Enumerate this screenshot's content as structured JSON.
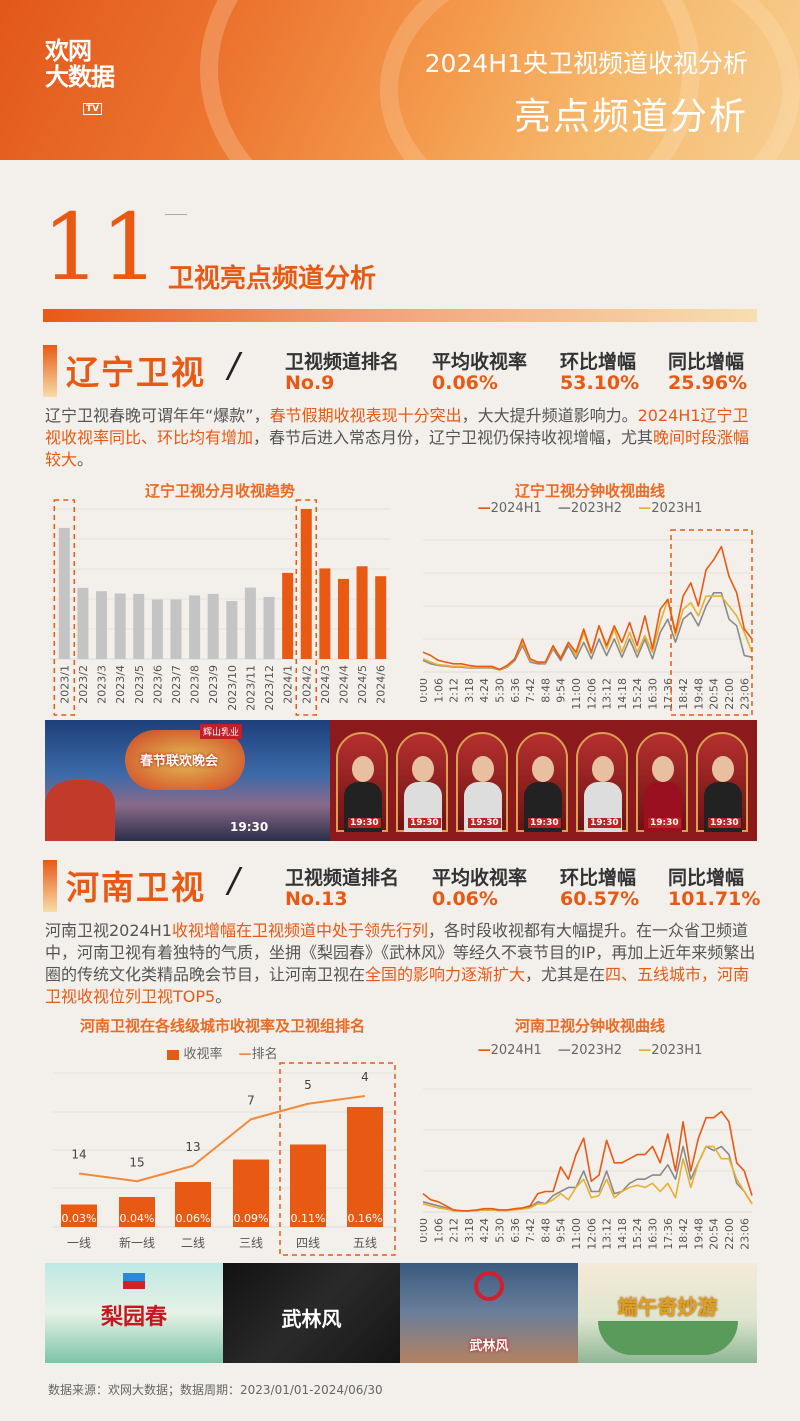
{
  "header": {
    "logo_text_1": "欢网",
    "logo_text_2": "大数据",
    "logo_badge": "TV",
    "subtitle": "2024H1央卫视频道收视分析",
    "title": "亮点频道分析"
  },
  "section": {
    "number": "11",
    "title": "卫视亮点频道分析"
  },
  "stat_labels": [
    "卫视频道排名",
    "平均收视率",
    "环比增幅",
    "同比增幅"
  ],
  "liaoning": {
    "name": "辽宁卫视",
    "slash": "/",
    "stats": [
      "No.9",
      "0.06%",
      "53.10%",
      "25.96%"
    ],
    "paragraph": [
      {
        "t": "辽宁卫视春晚可谓年年“爆款”，"
      },
      {
        "t": "春节假期收视表现十分突出",
        "hl": true
      },
      {
        "t": "，大大提升频道影响力。"
      },
      {
        "t": "2024H1辽宁卫视收视率同比、环比均有增加",
        "hl": true
      },
      {
        "t": "，春节后进入常态月份，辽宁卫视仍保持收视增幅，尤其"
      },
      {
        "t": "晚间时段涨幅较大",
        "hl": true
      },
      {
        "t": "。"
      }
    ],
    "photos": {
      "left_caption": "春节联欢晚会",
      "left_time": "19:30",
      "left_sponsor": "辉山乳业",
      "right_time": "19:30"
    }
  },
  "henan": {
    "name": "河南卫视",
    "slash": "/",
    "stats": [
      "No.13",
      "0.06%",
      "60.57%",
      "101.71%"
    ],
    "paragraph": [
      {
        "t": "河南卫视2024H1"
      },
      {
        "t": "收视增幅在卫视频道中处于领先行列",
        "hl": true
      },
      {
        "t": "，各时段收视都有大幅提升。在一众省卫频道中，河南卫视有着独特的气质，坐拥《梨园春》《武林风》等经久不衰节目的IP，再加上近年来频繁出圈的传统文化类精品晚会节目，让河南卫视在"
      },
      {
        "t": "全国的影响力逐渐扩大",
        "hl": true
      },
      {
        "t": "，尤其是在"
      },
      {
        "t": "四、五线城市，河南卫视收视位列卫视TOP5",
        "hl": true
      },
      {
        "t": "。"
      }
    ],
    "photos": [
      "梨园春",
      "武林风",
      "武林风",
      "端午奇妙游"
    ]
  },
  "footer": "数据来源：欢网大数据；数据周期：2023/01/01-2024/06/30",
  "colors": {
    "accent": "#e85a14",
    "h2023h2": "#8a8a8a",
    "h2023h1": "#e8b030",
    "bar_2023": "#c4c4c4",
    "bg": "#f3efeb"
  },
  "chart_data": [
    {
      "type": "bar",
      "title": "辽宁卫视分月收视趋势",
      "categories": [
        "2023/1",
        "2023/2",
        "2023/3",
        "2023/4",
        "2023/5",
        "2023/6",
        "2023/7",
        "2023/8",
        "2023/9",
        "2023/10",
        "2023/11",
        "2023/12",
        "2024/1",
        "2024/2",
        "2024/3",
        "2024/4",
        "2024/5",
        "2024/6"
      ],
      "values": [
        4.37,
        2.37,
        2.26,
        2.18,
        2.17,
        1.98,
        1.98,
        2.12,
        2.17,
        1.93,
        2.38,
        2.07,
        2.87,
        5.0,
        3.02,
        2.67,
        3.09,
        2.76
      ],
      "ylim": [
        0,
        5
      ],
      "grid": true,
      "highlight": [
        "2023/1",
        "2024/2"
      ]
    },
    {
      "type": "line",
      "title": "辽宁卫视分钟收视曲线",
      "legend": "top",
      "x_ticks": [
        "0:00",
        "1:06",
        "2:12",
        "3:18",
        "4:24",
        "5:30",
        "6:36",
        "7:42",
        "8:48",
        "9:54",
        "11:00",
        "12:06",
        "13:12",
        "14:18",
        "15:24",
        "16:30",
        "17:36",
        "18:42",
        "19:48",
        "20:54",
        "22:00",
        "23:06"
      ],
      "series": [
        {
          "name": "2024H1",
          "values": [
            0.6,
            0.5,
            0.35,
            0.3,
            0.25,
            0.25,
            0.2,
            0.17,
            0.17,
            0.17,
            0.08,
            0.2,
            0.4,
            1.0,
            0.4,
            0.3,
            0.3,
            0.8,
            0.4,
            0.9,
            0.6,
            1.3,
            0.6,
            1.4,
            0.8,
            1.4,
            0.9,
            1.5,
            0.8,
            1.7,
            0.7,
            1.9,
            2.2,
            1.2,
            2.3,
            2.7,
            2.0,
            3.1,
            3.4,
            3.8,
            2.9,
            2.4,
            1.3,
            1.0
          ]
        },
        {
          "name": "2023H2",
          "values": [
            0.35,
            0.25,
            0.2,
            0.18,
            0.15,
            0.15,
            0.12,
            0.12,
            0.12,
            0.12,
            0.06,
            0.15,
            0.35,
            0.8,
            0.3,
            0.25,
            0.25,
            0.7,
            0.35,
            0.8,
            0.4,
            0.9,
            0.4,
            1.0,
            0.5,
            1.0,
            0.45,
            1.0,
            0.45,
            1.0,
            0.4,
            1.2,
            1.6,
            0.9,
            1.6,
            1.8,
            1.4,
            2.0,
            2.4,
            2.4,
            1.6,
            1.4,
            0.5,
            0.45
          ]
        },
        {
          "name": "2023H1",
          "values": [
            0.4,
            0.3,
            0.22,
            0.2,
            0.17,
            0.17,
            0.14,
            0.14,
            0.14,
            0.14,
            0.07,
            0.17,
            0.4,
            0.9,
            0.35,
            0.3,
            0.28,
            0.75,
            0.45,
            0.9,
            0.5,
            1.2,
            0.55,
            1.4,
            0.7,
            1.3,
            0.6,
            1.2,
            0.6,
            1.1,
            0.6,
            1.5,
            2.2,
            1.1,
            1.9,
            2.1,
            1.7,
            2.3,
            2.3,
            2.3,
            2.0,
            1.7,
            1.2,
            0.6
          ]
        }
      ],
      "ylim": [
        0,
        4
      ],
      "grid": true,
      "highlight_range": [
        "18:42",
        "23:06"
      ]
    },
    {
      "type": "bar",
      "title": "河南卫视在各线级城市收视率及卫视组排名",
      "legend": [
        "收视率",
        "排名"
      ],
      "categories": [
        "一线",
        "新一线",
        "二线",
        "三线",
        "四线",
        "五线"
      ],
      "series": [
        {
          "name": "收视率",
          "values": [
            0.03,
            0.04,
            0.06,
            0.09,
            0.11,
            0.16
          ],
          "labels": [
            "0.03%",
            "0.04%",
            "0.06%",
            "0.09%",
            "0.11%",
            "0.16%"
          ]
        },
        {
          "name": "排名",
          "type": "line",
          "values": [
            14,
            15,
            13,
            7,
            5,
            4
          ]
        }
      ],
      "grid": true,
      "highlight": [
        "四线",
        "五线"
      ]
    },
    {
      "type": "line",
      "title": "河南卫视分钟收视曲线",
      "legend": "top",
      "x_ticks": [
        "0:00",
        "1:06",
        "2:12",
        "3:18",
        "4:24",
        "5:30",
        "6:36",
        "7:42",
        "8:48",
        "9:54",
        "11:00",
        "12:06",
        "13:12",
        "14:18",
        "15:24",
        "16:30",
        "17:36",
        "18:42",
        "19:48",
        "20:54",
        "22:00",
        "23:06"
      ],
      "series": [
        {
          "name": "2024H1",
          "values": [
            0.45,
            0.3,
            0.25,
            0.15,
            0.05,
            0.03,
            0.03,
            0.05,
            0.08,
            0.08,
            0.05,
            0.05,
            0.08,
            0.1,
            0.15,
            0.45,
            0.5,
            0.5,
            1.1,
            0.8,
            1.4,
            1.8,
            0.75,
            0.9,
            1.75,
            1.2,
            1.2,
            1.3,
            1.4,
            1.4,
            1.6,
            1.2,
            1.9,
            1.0,
            2.2,
            1.0,
            1.8,
            2.3,
            2.3,
            2.45,
            2.2,
            1.2,
            1.0,
            0.4
          ]
        },
        {
          "name": "2023H2",
          "values": [
            0.25,
            0.2,
            0.15,
            0.1,
            0.05,
            0.03,
            0.03,
            0.04,
            0.05,
            0.05,
            0.04,
            0.04,
            0.06,
            0.08,
            0.12,
            0.25,
            0.2,
            0.4,
            0.5,
            0.6,
            0.6,
            1.0,
            0.5,
            0.5,
            1.0,
            0.45,
            0.5,
            0.7,
            0.8,
            0.8,
            0.9,
            0.9,
            1.15,
            0.8,
            1.6,
            0.8,
            1.2,
            1.6,
            1.5,
            1.6,
            1.4,
            0.7,
            0.5,
            0.2
          ]
        },
        {
          "name": "2023H1",
          "values": [
            0.2,
            0.15,
            0.1,
            0.07,
            0.03,
            0.03,
            0.03,
            0.04,
            0.05,
            0.05,
            0.04,
            0.04,
            0.05,
            0.07,
            0.1,
            0.2,
            0.2,
            0.3,
            0.45,
            0.3,
            0.6,
            0.8,
            0.35,
            0.4,
            0.8,
            0.35,
            0.5,
            0.6,
            0.65,
            0.6,
            0.7,
            0.5,
            0.7,
            0.35,
            1.3,
            0.6,
            1.2,
            1.6,
            1.6,
            1.3,
            1.3,
            0.8,
            0.5,
            0.2
          ]
        }
      ],
      "ylim": [
        0,
        3
      ],
      "grid": true
    }
  ]
}
